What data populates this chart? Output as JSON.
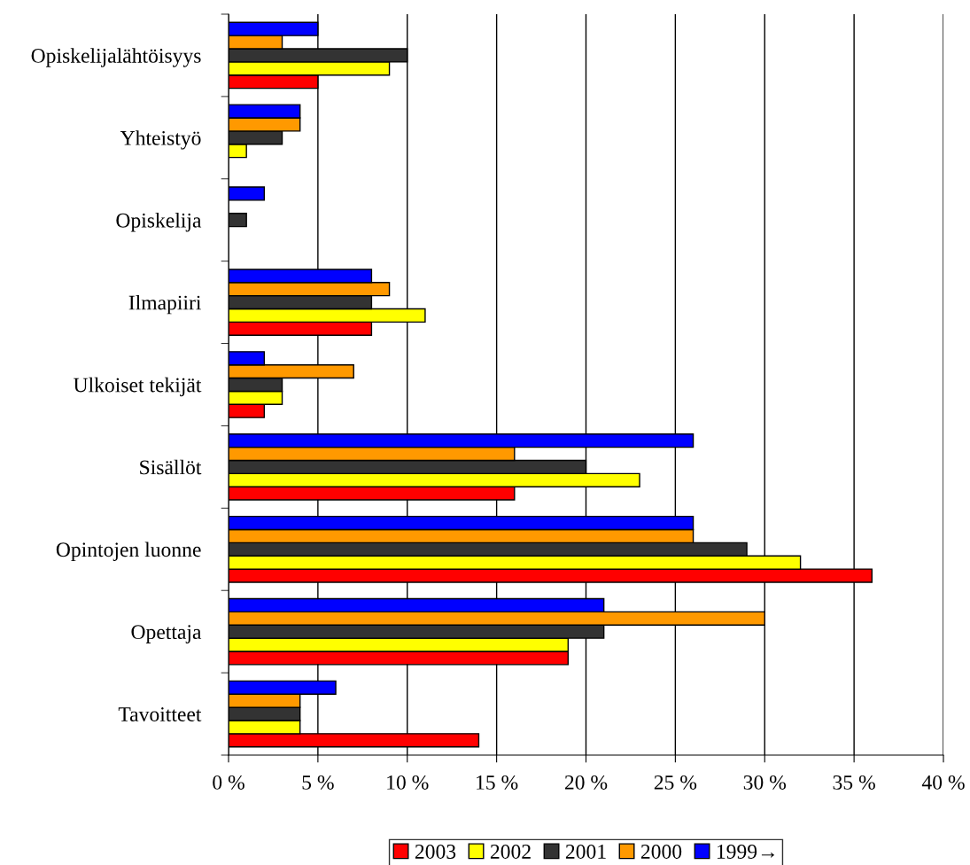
{
  "chart_data": {
    "type": "bar",
    "orientation": "horizontal",
    "categories": [
      "Opiskelijalähtöisyys",
      "Yhteistyö",
      "Opiskelija",
      "Ilmapiiri",
      "Ulkoiset tekijät",
      "Sisällöt",
      "Opintojen luonne",
      "Opettaja",
      "Tavoitteet"
    ],
    "series": [
      {
        "name": "2003",
        "color": "#ff0000",
        "values": [
          5,
          null,
          null,
          8,
          2,
          16,
          36,
          19,
          14
        ]
      },
      {
        "name": "2002",
        "color": "#ffff00",
        "values": [
          9,
          1,
          null,
          11,
          3,
          23,
          32,
          19,
          4
        ]
      },
      {
        "name": "2001",
        "color": "#333333",
        "values": [
          10,
          3,
          1,
          8,
          3,
          20,
          29,
          21,
          4
        ]
      },
      {
        "name": "2000",
        "color": "#ff9900",
        "values": [
          3,
          4,
          null,
          9,
          7,
          16,
          26,
          30,
          4
        ]
      },
      {
        "name": "1999→",
        "color": "#0000ff",
        "values": [
          5,
          4,
          2,
          8,
          2,
          26,
          26,
          21,
          6
        ]
      }
    ],
    "xlim": [
      0,
      40
    ],
    "xticks": [
      {
        "value": 0,
        "label": "0 %"
      },
      {
        "value": 5,
        "label": "5 %"
      },
      {
        "value": 10,
        "label": "10 %"
      },
      {
        "value": 15,
        "label": "15 %"
      },
      {
        "value": 20,
        "label": "20 %"
      },
      {
        "value": 25,
        "label": "25 %"
      },
      {
        "value": 30,
        "label": "30 %"
      },
      {
        "value": 35,
        "label": "35 %"
      },
      {
        "value": 40,
        "label": "40 %"
      }
    ],
    "grid": "x",
    "legend": "bottom"
  }
}
